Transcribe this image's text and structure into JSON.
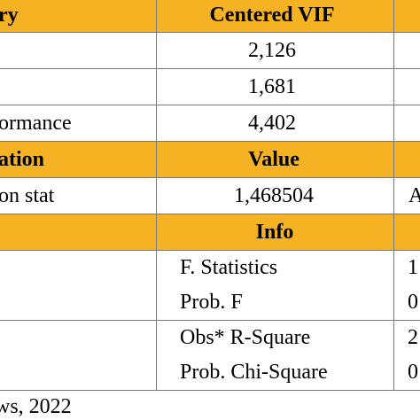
{
  "vif_section": {
    "header_left": "ry",
    "header_middle": "Centered VIF",
    "rows": [
      {
        "label": "",
        "value": "2,126"
      },
      {
        "label": "",
        "value": "1,681"
      },
      {
        "label": "ormance",
        "value": "4,402"
      }
    ]
  },
  "autocorrelation_section": {
    "header_left": "ation",
    "header_middle": "Value",
    "rows": [
      {
        "label": "on stat",
        "value": "1,468504",
        "right": "A"
      }
    ]
  },
  "heteroskedasticity_section": {
    "header_middle": "Info",
    "rows": [
      {
        "info": "F. Statistics",
        "right": "1"
      },
      {
        "info": "Prob. F",
        "right": "0"
      },
      {
        "info": "Obs* R-Square",
        "right": "2"
      },
      {
        "info": "Prob. Chi-Square",
        "right": "0"
      }
    ]
  },
  "footer": "ws, 2022",
  "colors": {
    "header_bg": "#f5b323",
    "grid": "#7a7a7a"
  }
}
